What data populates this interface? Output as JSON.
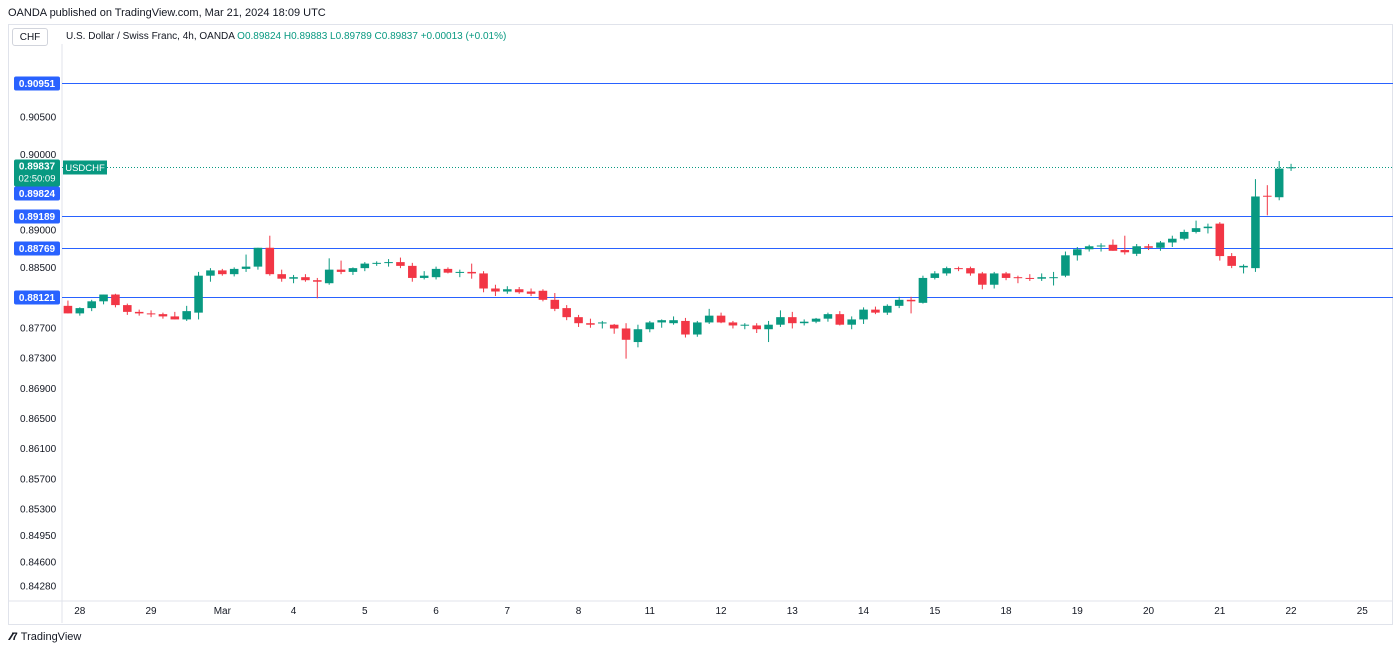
{
  "header": {
    "published": "OANDA published on TradingView.com, Mar 21, 2024 18:09 UTC",
    "currency_button": "CHF"
  },
  "legend": {
    "title": "U.S. Dollar / Swiss Franc, 4h, OANDA",
    "o": "O0.89824",
    "h": "H0.89883",
    "l": "L0.89789",
    "c": "C0.89837",
    "change": "+0.00013 (+0.01%)"
  },
  "footer": {
    "brand": "TradingView"
  },
  "colors": {
    "up": "#089981",
    "down": "#f23645",
    "level": "#2962ff",
    "price_tag": "#089981"
  },
  "chart_data": {
    "type": "candlestick",
    "symbol": "USDCHF",
    "ylim": [
      0.841,
      0.9118
    ],
    "y_ticks": [
      "0.90500",
      "0.90000",
      "0.89000",
      "0.88500",
      "0.87700",
      "0.87300",
      "0.86900",
      "0.86500",
      "0.86100",
      "0.85700",
      "0.85300",
      "0.84950",
      "0.84600",
      "0.84280"
    ],
    "x_labels": [
      {
        "i": 1.5,
        "label": "28"
      },
      {
        "i": 7.5,
        "label": "29"
      },
      {
        "i": 13.5,
        "label": "Mar"
      },
      {
        "i": 19.5,
        "label": "4"
      },
      {
        "i": 25.5,
        "label": "5"
      },
      {
        "i": 31.5,
        "label": "6"
      },
      {
        "i": 37.5,
        "label": "7"
      },
      {
        "i": 43.5,
        "label": "8"
      },
      {
        "i": 49.5,
        "label": "11"
      },
      {
        "i": 55.5,
        "label": "12"
      },
      {
        "i": 61.5,
        "label": "13"
      },
      {
        "i": 67.5,
        "label": "14"
      },
      {
        "i": 73.5,
        "label": "15"
      },
      {
        "i": 79.5,
        "label": "18"
      },
      {
        "i": 85.5,
        "label": "19"
      },
      {
        "i": 91.5,
        "label": "20"
      },
      {
        "i": 97.5,
        "label": "21"
      },
      {
        "i": 103.5,
        "label": "22"
      },
      {
        "i": 109.5,
        "label": "25"
      }
    ],
    "x_slots": 112,
    "levels": [
      {
        "value": 0.90951,
        "label": "0.90951"
      },
      {
        "value": 0.89189,
        "label": "0.89189"
      },
      {
        "value": 0.88769,
        "label": "0.88769"
      },
      {
        "value": 0.88121,
        "label": "0.88121"
      }
    ],
    "current": {
      "value": 0.89837,
      "label": "0.89837",
      "countdown": "02:50:09",
      "symbol": "USDCHF",
      "prev_label": "0.89824"
    },
    "candles": [
      {
        "o": 0.88,
        "h": 0.8807,
        "l": 0.879,
        "c": 0.879
      },
      {
        "o": 0.879,
        "h": 0.8798,
        "l": 0.8787,
        "c": 0.8797
      },
      {
        "o": 0.8797,
        "h": 0.8808,
        "l": 0.8793,
        "c": 0.8806
      },
      {
        "o": 0.8806,
        "h": 0.8815,
        "l": 0.8802,
        "c": 0.8815
      },
      {
        "o": 0.8815,
        "h": 0.8816,
        "l": 0.8798,
        "c": 0.8801
      },
      {
        "o": 0.8801,
        "h": 0.8803,
        "l": 0.8788,
        "c": 0.8792
      },
      {
        "o": 0.8792,
        "h": 0.8795,
        "l": 0.8787,
        "c": 0.879
      },
      {
        "o": 0.879,
        "h": 0.8794,
        "l": 0.8785,
        "c": 0.8789
      },
      {
        "o": 0.8789,
        "h": 0.8791,
        "l": 0.8783,
        "c": 0.8786
      },
      {
        "o": 0.8786,
        "h": 0.8792,
        "l": 0.8782,
        "c": 0.8782
      },
      {
        "o": 0.8782,
        "h": 0.88,
        "l": 0.878,
        "c": 0.8793
      },
      {
        "o": 0.8791,
        "h": 0.8845,
        "l": 0.8782,
        "c": 0.884
      },
      {
        "o": 0.884,
        "h": 0.885,
        "l": 0.8832,
        "c": 0.8847
      },
      {
        "o": 0.8847,
        "h": 0.8849,
        "l": 0.884,
        "c": 0.8842
      },
      {
        "o": 0.8842,
        "h": 0.8851,
        "l": 0.8839,
        "c": 0.8849
      },
      {
        "o": 0.8849,
        "h": 0.8868,
        "l": 0.8845,
        "c": 0.8852
      },
      {
        "o": 0.8852,
        "h": 0.8877,
        "l": 0.8848,
        "c": 0.8877
      },
      {
        "o": 0.8877,
        "h": 0.8893,
        "l": 0.884,
        "c": 0.8842
      },
      {
        "o": 0.8842,
        "h": 0.8848,
        "l": 0.8832,
        "c": 0.8836
      },
      {
        "o": 0.8836,
        "h": 0.8841,
        "l": 0.883,
        "c": 0.8838
      },
      {
        "o": 0.8838,
        "h": 0.8842,
        "l": 0.8832,
        "c": 0.8834
      },
      {
        "o": 0.8834,
        "h": 0.8837,
        "l": 0.881,
        "c": 0.8832
      },
      {
        "o": 0.883,
        "h": 0.8863,
        "l": 0.8828,
        "c": 0.8848
      },
      {
        "o": 0.8848,
        "h": 0.886,
        "l": 0.8842,
        "c": 0.8845
      },
      {
        "o": 0.8845,
        "h": 0.8851,
        "l": 0.8841,
        "c": 0.885
      },
      {
        "o": 0.885,
        "h": 0.8858,
        "l": 0.8846,
        "c": 0.8856
      },
      {
        "o": 0.8856,
        "h": 0.8859,
        "l": 0.8853,
        "c": 0.8857
      },
      {
        "o": 0.8857,
        "h": 0.8862,
        "l": 0.8852,
        "c": 0.8858
      },
      {
        "o": 0.8858,
        "h": 0.8864,
        "l": 0.885,
        "c": 0.8853
      },
      {
        "o": 0.8853,
        "h": 0.8857,
        "l": 0.8832,
        "c": 0.8837
      },
      {
        "o": 0.8837,
        "h": 0.8846,
        "l": 0.8835,
        "c": 0.884
      },
      {
        "o": 0.8838,
        "h": 0.8852,
        "l": 0.8835,
        "c": 0.8849
      },
      {
        "o": 0.8849,
        "h": 0.8851,
        "l": 0.8843,
        "c": 0.8844
      },
      {
        "o": 0.8844,
        "h": 0.8848,
        "l": 0.8838,
        "c": 0.8845
      },
      {
        "o": 0.8845,
        "h": 0.8856,
        "l": 0.8836,
        "c": 0.8843
      },
      {
        "o": 0.8843,
        "h": 0.8846,
        "l": 0.8818,
        "c": 0.8823
      },
      {
        "o": 0.8823,
        "h": 0.8828,
        "l": 0.8813,
        "c": 0.8819
      },
      {
        "o": 0.8819,
        "h": 0.8826,
        "l": 0.8816,
        "c": 0.8822
      },
      {
        "o": 0.8822,
        "h": 0.8825,
        "l": 0.8816,
        "c": 0.8818
      },
      {
        "o": 0.8819,
        "h": 0.8823,
        "l": 0.8813,
        "c": 0.8816
      },
      {
        "o": 0.882,
        "h": 0.8822,
        "l": 0.8806,
        "c": 0.8808
      },
      {
        "o": 0.8808,
        "h": 0.8817,
        "l": 0.8793,
        "c": 0.8796
      },
      {
        "o": 0.8797,
        "h": 0.8801,
        "l": 0.8781,
        "c": 0.8785
      },
      {
        "o": 0.8785,
        "h": 0.8788,
        "l": 0.8772,
        "c": 0.8777
      },
      {
        "o": 0.8777,
        "h": 0.8783,
        "l": 0.8771,
        "c": 0.8775
      },
      {
        "o": 0.8777,
        "h": 0.878,
        "l": 0.877,
        "c": 0.8778
      },
      {
        "o": 0.8775,
        "h": 0.8776,
        "l": 0.8763,
        "c": 0.877
      },
      {
        "o": 0.877,
        "h": 0.8777,
        "l": 0.873,
        "c": 0.8755
      },
      {
        "o": 0.8752,
        "h": 0.8775,
        "l": 0.8745,
        "c": 0.8769
      },
      {
        "o": 0.8769,
        "h": 0.878,
        "l": 0.8765,
        "c": 0.8778
      },
      {
        "o": 0.8778,
        "h": 0.8782,
        "l": 0.8771,
        "c": 0.8781
      },
      {
        "o": 0.8777,
        "h": 0.8786,
        "l": 0.8775,
        "c": 0.8781
      },
      {
        "o": 0.878,
        "h": 0.8784,
        "l": 0.8758,
        "c": 0.8762
      },
      {
        "o": 0.8762,
        "h": 0.878,
        "l": 0.8759,
        "c": 0.8778
      },
      {
        "o": 0.8778,
        "h": 0.8796,
        "l": 0.8776,
        "c": 0.8787
      },
      {
        "o": 0.8787,
        "h": 0.8791,
        "l": 0.8777,
        "c": 0.8778
      },
      {
        "o": 0.8778,
        "h": 0.878,
        "l": 0.877,
        "c": 0.8774
      },
      {
        "o": 0.8774,
        "h": 0.8777,
        "l": 0.8769,
        "c": 0.8775
      },
      {
        "o": 0.8774,
        "h": 0.8777,
        "l": 0.8764,
        "c": 0.8769
      },
      {
        "o": 0.8769,
        "h": 0.878,
        "l": 0.8752,
        "c": 0.8775
      },
      {
        "o": 0.8775,
        "h": 0.8794,
        "l": 0.8772,
        "c": 0.8785
      },
      {
        "o": 0.8785,
        "h": 0.8792,
        "l": 0.877,
        "c": 0.8777
      },
      {
        "o": 0.8777,
        "h": 0.8782,
        "l": 0.8774,
        "c": 0.8779
      },
      {
        "o": 0.8779,
        "h": 0.8784,
        "l": 0.8777,
        "c": 0.8783
      },
      {
        "o": 0.8783,
        "h": 0.8791,
        "l": 0.8779,
        "c": 0.8789
      },
      {
        "o": 0.8789,
        "h": 0.8793,
        "l": 0.8774,
        "c": 0.8775
      },
      {
        "o": 0.8775,
        "h": 0.8786,
        "l": 0.8769,
        "c": 0.8782
      },
      {
        "o": 0.8782,
        "h": 0.8798,
        "l": 0.8776,
        "c": 0.8795
      },
      {
        "o": 0.8795,
        "h": 0.8799,
        "l": 0.8789,
        "c": 0.8791
      },
      {
        "o": 0.8791,
        "h": 0.8802,
        "l": 0.8788,
        "c": 0.88
      },
      {
        "o": 0.88,
        "h": 0.8812,
        "l": 0.8797,
        "c": 0.8808
      },
      {
        "o": 0.8808,
        "h": 0.8812,
        "l": 0.879,
        "c": 0.8806
      },
      {
        "o": 0.8804,
        "h": 0.884,
        "l": 0.8803,
        "c": 0.8837
      },
      {
        "o": 0.8837,
        "h": 0.8846,
        "l": 0.8835,
        "c": 0.8843
      },
      {
        "o": 0.8843,
        "h": 0.8852,
        "l": 0.884,
        "c": 0.885
      },
      {
        "o": 0.885,
        "h": 0.8852,
        "l": 0.8846,
        "c": 0.8849
      },
      {
        "o": 0.885,
        "h": 0.8852,
        "l": 0.884,
        "c": 0.8843
      },
      {
        "o": 0.8843,
        "h": 0.8845,
        "l": 0.8822,
        "c": 0.8828
      },
      {
        "o": 0.8828,
        "h": 0.8845,
        "l": 0.8823,
        "c": 0.8843
      },
      {
        "o": 0.8843,
        "h": 0.8845,
        "l": 0.8834,
        "c": 0.8837
      },
      {
        "o": 0.8838,
        "h": 0.884,
        "l": 0.883,
        "c": 0.8837
      },
      {
        "o": 0.8837,
        "h": 0.8842,
        "l": 0.8833,
        "c": 0.8836
      },
      {
        "o": 0.8836,
        "h": 0.8843,
        "l": 0.8833,
        "c": 0.8838
      },
      {
        "o": 0.8838,
        "h": 0.8845,
        "l": 0.8827,
        "c": 0.8838
      },
      {
        "o": 0.884,
        "h": 0.8872,
        "l": 0.8838,
        "c": 0.8867
      },
      {
        "o": 0.8867,
        "h": 0.8878,
        "l": 0.886,
        "c": 0.8875
      },
      {
        "o": 0.8875,
        "h": 0.8881,
        "l": 0.8872,
        "c": 0.8879
      },
      {
        "o": 0.8879,
        "h": 0.8883,
        "l": 0.8872,
        "c": 0.888
      },
      {
        "o": 0.8881,
        "h": 0.8888,
        "l": 0.8873,
        "c": 0.8873
      },
      {
        "o": 0.8874,
        "h": 0.8893,
        "l": 0.8868,
        "c": 0.8871
      },
      {
        "o": 0.8869,
        "h": 0.8882,
        "l": 0.8866,
        "c": 0.8879
      },
      {
        "o": 0.8879,
        "h": 0.8882,
        "l": 0.8874,
        "c": 0.8877
      },
      {
        "o": 0.8877,
        "h": 0.8886,
        "l": 0.8873,
        "c": 0.8884
      },
      {
        "o": 0.8884,
        "h": 0.8893,
        "l": 0.8878,
        "c": 0.8889
      },
      {
        "o": 0.8889,
        "h": 0.8901,
        "l": 0.8887,
        "c": 0.8898
      },
      {
        "o": 0.8898,
        "h": 0.8913,
        "l": 0.8896,
        "c": 0.8903
      },
      {
        "o": 0.8903,
        "h": 0.8909,
        "l": 0.8896,
        "c": 0.8905
      },
      {
        "o": 0.8909,
        "h": 0.8911,
        "l": 0.886,
        "c": 0.8866
      },
      {
        "o": 0.8866,
        "h": 0.887,
        "l": 0.885,
        "c": 0.8853
      },
      {
        "o": 0.8851,
        "h": 0.8855,
        "l": 0.8843,
        "c": 0.8853
      },
      {
        "o": 0.885,
        "h": 0.8968,
        "l": 0.8845,
        "c": 0.8945
      },
      {
        "o": 0.8946,
        "h": 0.896,
        "l": 0.892,
        "c": 0.8945
      },
      {
        "o": 0.8944,
        "h": 0.8992,
        "l": 0.894,
        "c": 0.8982
      },
      {
        "o": 0.89824,
        "h": 0.89883,
        "l": 0.89789,
        "c": 0.89837
      }
    ]
  }
}
